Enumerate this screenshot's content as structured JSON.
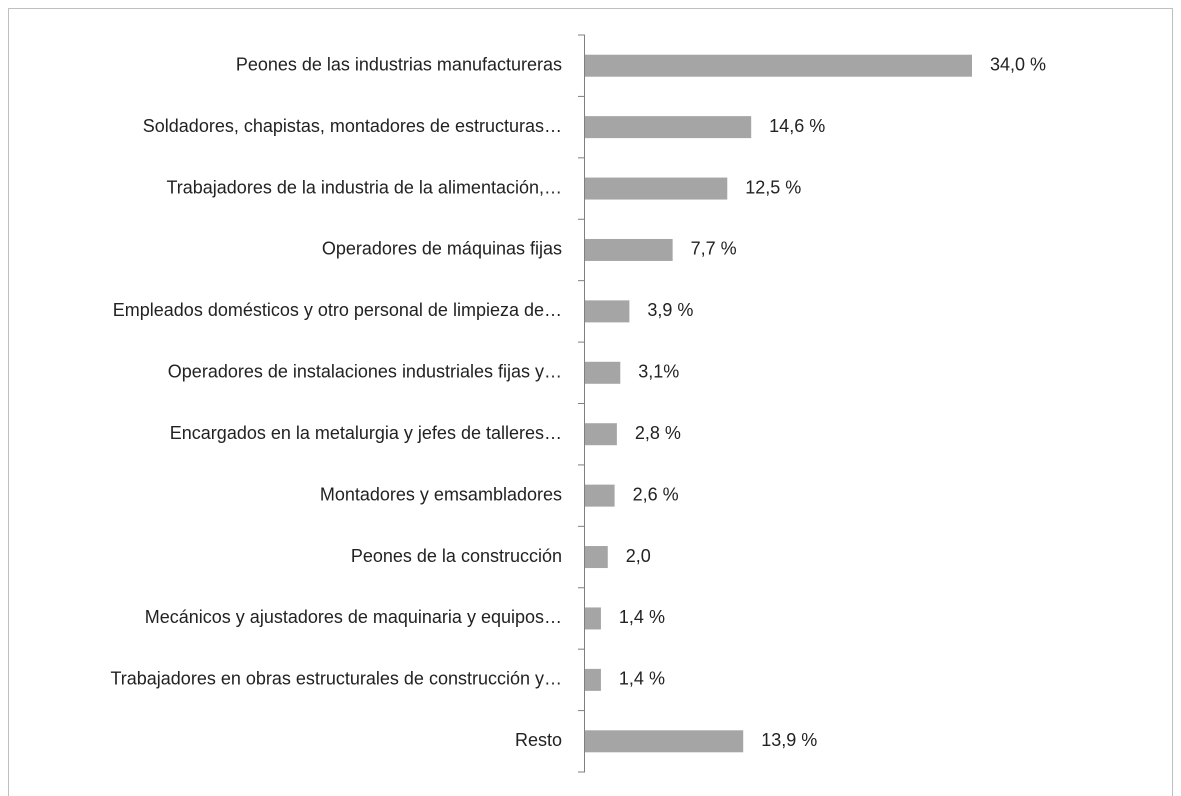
{
  "chart_data": {
    "type": "bar",
    "orientation": "horizontal",
    "categories": [
      "Peones de las industrias manufactureras",
      "Soldadores, chapistas, montadores de estructuras…",
      "Trabajadores de la industria de la alimentación,…",
      "Operadores de máquinas fijas",
      "Empleados domésticos y otro personal de limpieza de…",
      "Operadores de instalaciones industriales fijas y…",
      "Encargados en la metalurgia y jefes de talleres…",
      "Montadores y emsambladores",
      "Peones de la construcción",
      "Mecánicos y ajustadores de maquinaria y equipos…",
      "Trabajadores en obras estructurales de construcción y…",
      "Resto"
    ],
    "values": [
      34.0,
      14.6,
      12.5,
      7.7,
      3.9,
      3.1,
      2.8,
      2.6,
      2.0,
      1.4,
      1.4,
      13.9
    ],
    "value_labels": [
      "34,0 %",
      "14,6 %",
      "12,5 %",
      "7,7 %",
      "3,9 %",
      "3,1%",
      "2,8 %",
      "2,6 %",
      "2,0",
      "1,4 %",
      "1,4 %",
      "13,9 %"
    ],
    "color": "#a5a5a5"
  }
}
